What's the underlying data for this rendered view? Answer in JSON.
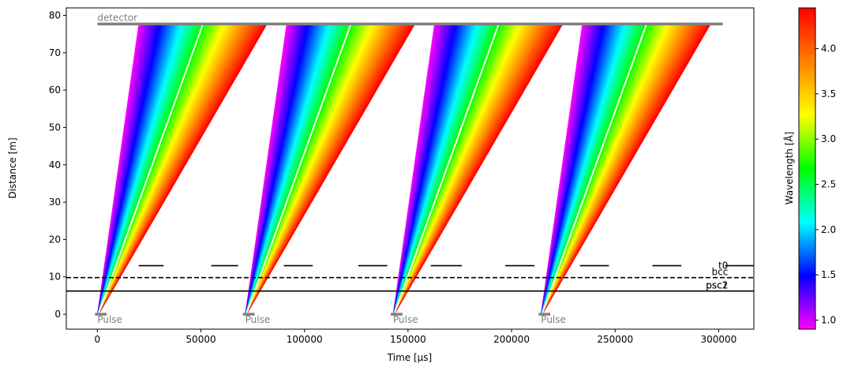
{
  "chart_data": {
    "type": "line",
    "xlabel": "Time [µs]",
    "ylabel": "Distance [m]",
    "xlim": [
      -15000,
      317000
    ],
    "ylim": [
      -4,
      82
    ],
    "xticks": [
      0,
      50000,
      100000,
      150000,
      200000,
      250000,
      300000
    ],
    "yticks": [
      0,
      10,
      20,
      30,
      40,
      50,
      60,
      70,
      80
    ],
    "grid": false,
    "legend": "none",
    "pulse_label": "Pulse",
    "pulses": [
      {
        "start": 0,
        "end": 3000
      },
      {
        "start": 71400,
        "end": 74400
      },
      {
        "start": 142800,
        "end": 145800
      },
      {
        "start": 214200,
        "end": 217200
      }
    ],
    "bands": [
      {
        "t_src": [
          0,
          720
        ],
        "t_det": [
          20000,
          82000
        ]
      },
      {
        "t_src": [
          71400,
          72120
        ],
        "t_det": [
          91400,
          153400
        ]
      },
      {
        "t_src": [
          142800,
          143520
        ],
        "t_det": [
          162800,
          224800
        ]
      },
      {
        "t_src": [
          214200,
          214920
        ],
        "t_det": [
          234200,
          296200
        ]
      }
    ],
    "white_lines": [
      {
        "x0": 500,
        "x1": 51000
      },
      {
        "x0": 71900,
        "x1": 122400
      },
      {
        "x0": 143300,
        "x1": 193800
      },
      {
        "x0": 214700,
        "x1": 265200
      }
    ],
    "detector": {
      "label": "detector",
      "distance": 77.7,
      "x_start": 0,
      "x_end": 302000
    },
    "choppers": [
      {
        "label": "t0",
        "distance": 13.0,
        "style": "dashed-open"
      },
      {
        "label": "bcc",
        "distance": 9.8,
        "style": "dashed"
      },
      {
        "label": "psc1",
        "distance": 6.2,
        "style": "solid"
      },
      {
        "label": "psc2",
        "distance": 6.2,
        "style": "solid"
      }
    ],
    "t0_open_segments": [
      [
        20000,
        32000
      ],
      [
        55000,
        68000
      ],
      [
        90000,
        104000
      ],
      [
        126000,
        140000
      ],
      [
        161000,
        176000
      ],
      [
        197000,
        211000
      ],
      [
        233000,
        247000
      ],
      [
        268000,
        282000
      ],
      [
        303000,
        317000
      ]
    ],
    "colorbar": {
      "label": "Wavelength [Å]",
      "min": 0.9,
      "max": 4.45,
      "ticks": [
        "1.0",
        "1.5",
        "2.0",
        "2.5",
        "3.0",
        "3.5",
        "4.0"
      ],
      "tick_values": [
        1.0,
        1.5,
        2.0,
        2.5,
        3.0,
        3.5,
        4.0
      ],
      "colormap": "gist_rainbow_r",
      "colors": [
        "#ff00ff",
        "#0000ff",
        "#00ffff",
        "#00ff00",
        "#ffff00",
        "#ff8000",
        "#ff0000"
      ]
    }
  }
}
